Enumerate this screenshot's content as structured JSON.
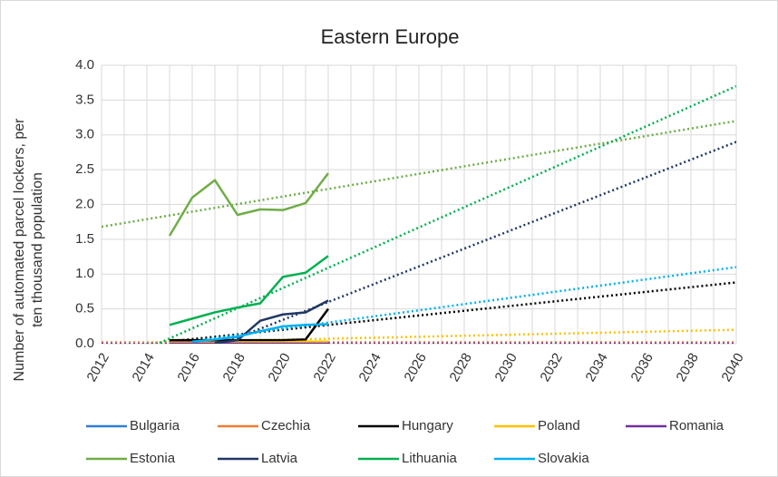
{
  "chart_data": {
    "type": "line",
    "title": "Eastern Europe",
    "ylabel": [
      "Number of automated parcel lockers, per",
      "ten thousand population"
    ],
    "x": [
      2015,
      2016,
      2017,
      2018,
      2019,
      2020,
      2021,
      2022
    ],
    "xlim": [
      2012,
      2040
    ],
    "xticks": [
      2012,
      2014,
      2016,
      2018,
      2020,
      2022,
      2024,
      2026,
      2028,
      2030,
      2032,
      2034,
      2036,
      2038,
      2040
    ],
    "xminorticks": [
      2013,
      2015,
      2017,
      2019,
      2021,
      2023,
      2025,
      2027,
      2029,
      2031,
      2033,
      2035,
      2037,
      2039
    ],
    "ylim": [
      0,
      4
    ],
    "yticks": [
      {
        "value": 0,
        "label": "0.0"
      },
      {
        "value": 0.5,
        "label": "0.5"
      },
      {
        "value": 1,
        "label": "1.0"
      },
      {
        "value": 1.5,
        "label": "1.5"
      },
      {
        "value": 2,
        "label": "2.0"
      },
      {
        "value": 2.5,
        "label": "2.5"
      },
      {
        "value": 3,
        "label": "3.0"
      },
      {
        "value": 3.5,
        "label": "3.5"
      },
      {
        "value": 4,
        "label": "4.0"
      }
    ],
    "grid": true,
    "legend": "bottom",
    "series": [
      {
        "name": "Bulgaria",
        "color": "#2e7fd6",
        "values": [
          0,
          0,
          0,
          0,
          0,
          0,
          0,
          0
        ],
        "trend": [
          0,
          0
        ]
      },
      {
        "name": "Czechia",
        "color": "#ed7d31",
        "values": [
          0.02,
          0.02,
          0.02,
          0.02,
          0.02,
          0.02,
          0.03,
          0.03
        ],
        "trend": [
          0.02,
          0.02
        ]
      },
      {
        "name": "Hungary",
        "color": "#000000",
        "values": [
          0.05,
          0.05,
          0.05,
          0.05,
          0.05,
          0.05,
          0.06,
          0.5
        ],
        "trend": [
          -0.07,
          0.88
        ]
      },
      {
        "name": "Poland",
        "color": "#ffc000",
        "values": [
          0.01,
          0.01,
          0.01,
          0.02,
          0.02,
          0.02,
          0.03,
          0.03
        ],
        "trend": [
          0,
          0.2
        ]
      },
      {
        "name": "Romania",
        "color": "#7030a0",
        "values": [
          0,
          0,
          0,
          0,
          0,
          0,
          0,
          0
        ],
        "trend": [
          0,
          0
        ]
      },
      {
        "name": "Estonia",
        "color": "#70ad47",
        "values": [
          1.55,
          2.1,
          2.35,
          1.85,
          1.93,
          1.92,
          2.02,
          2.45
        ],
        "trend": [
          1.68,
          3.2
        ]
      },
      {
        "name": "Latvia",
        "color": "#203864",
        "values": [
          null,
          null,
          0.01,
          0.05,
          0.33,
          0.42,
          0.45,
          0.62
        ],
        "trend": [
          -0.68,
          2.9
        ]
      },
      {
        "name": "Lithuania",
        "color": "#00b050",
        "values": [
          0.27,
          0.36,
          0.45,
          0.52,
          0.58,
          0.96,
          1.02,
          1.26
        ],
        "trend": [
          -0.36,
          3.7
        ]
      },
      {
        "name": "Slovakia",
        "color": "#00b0f0",
        "values": [
          null,
          0.03,
          0.06,
          0.1,
          0.18,
          0.25,
          0.27,
          0.28
        ],
        "trend": [
          -0.14,
          1.1
        ]
      }
    ]
  }
}
